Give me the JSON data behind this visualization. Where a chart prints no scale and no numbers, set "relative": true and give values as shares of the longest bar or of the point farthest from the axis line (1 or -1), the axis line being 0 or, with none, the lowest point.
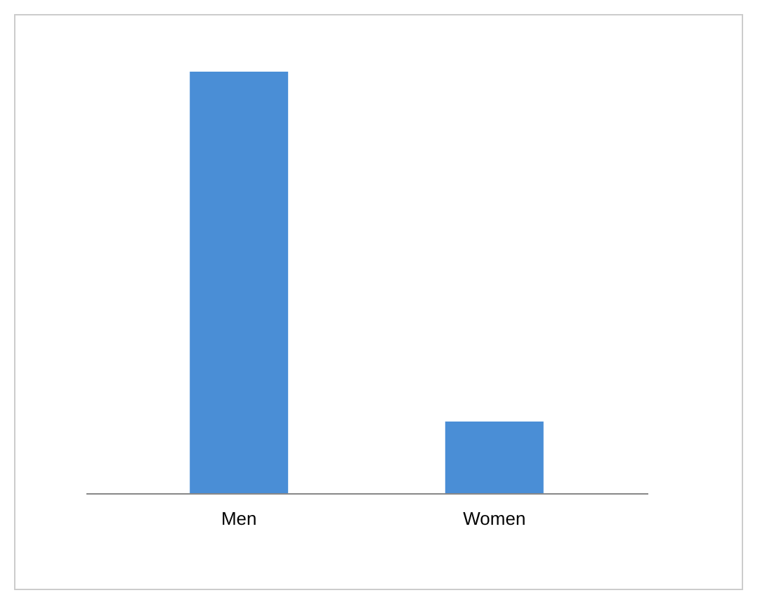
{
  "chart_data": {
    "type": "bar",
    "relative": true,
    "categories": [
      "Men",
      "Women"
    ],
    "values": [
      1,
      0.17
    ],
    "color": "#4a8ed6"
  }
}
